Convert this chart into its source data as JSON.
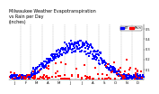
{
  "title": "Milwaukee Weather Evapotranspiration\nvs Rain per Day\n(Inches)",
  "title_fontsize": 3.5,
  "legend_labels": [
    "ET",
    "Rain"
  ],
  "legend_colors": [
    "#0000ff",
    "#ff0000"
  ],
  "background_color": "#ffffff",
  "grid_color": "#888888",
  "ylim": [
    0,
    0.55
  ],
  "xlim": [
    0,
    365
  ],
  "et_color": "#0000ff",
  "rain_color": "#ff0000",
  "black_color": "#000000",
  "month_lines": [
    31,
    59,
    90,
    120,
    151,
    181,
    212,
    243,
    273,
    304,
    334
  ],
  "xtick_positions": [
    15,
    46,
    74,
    105,
    135,
    166,
    196,
    228,
    258,
    288,
    319,
    349
  ],
  "xtick_labels": [
    "J",
    "F",
    "M",
    "A",
    "M",
    "J",
    "J",
    "A",
    "S",
    "O",
    "N",
    "D"
  ],
  "ytick_vals": [
    0.1,
    0.2,
    0.3,
    0.4,
    0.5
  ],
  "ytick_labels": [
    "0.1",
    "0.2",
    "0.3",
    "0.4",
    "0.5"
  ]
}
